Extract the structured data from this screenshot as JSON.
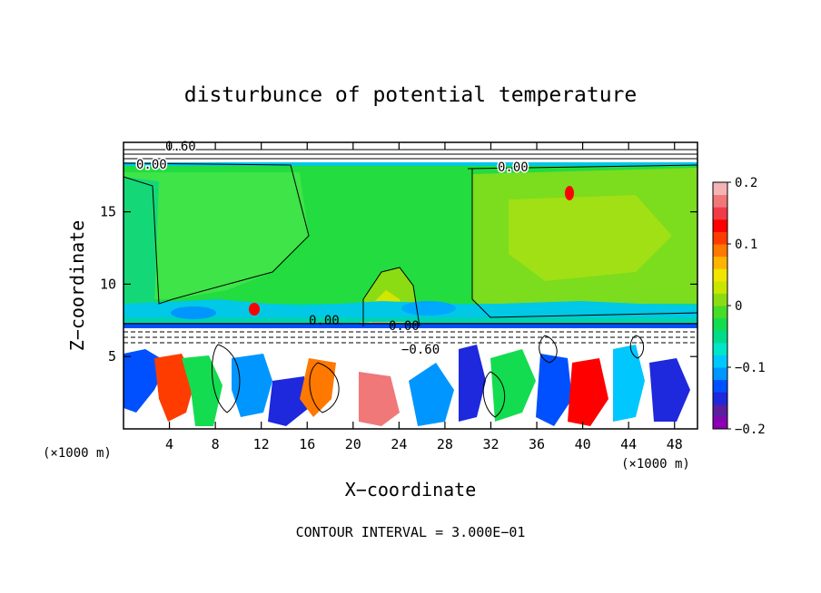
{
  "chart_data": {
    "type": "heatmap",
    "title": "disturbunce of potential temperature",
    "xlabel": "X−coordinate",
    "ylabel": "Z−coordinate",
    "x_unit_left": "(×1000 m)",
    "x_unit_right": "(×1000 m)",
    "xlim": [
      0,
      50
    ],
    "ylim": [
      0,
      19.8
    ],
    "x_ticks": [
      4,
      8,
      12,
      16,
      20,
      24,
      28,
      32,
      36,
      40,
      44,
      48
    ],
    "y_ticks": [
      5,
      10,
      15
    ],
    "colorbar": {
      "range": [
        -0.2,
        0.2
      ],
      "ticks": [
        {
          "value": 0.2,
          "label": "0.2"
        },
        {
          "value": 0.1,
          "label": "0.1"
        },
        {
          "value": 0.0,
          "label": "0"
        },
        {
          "value": -0.1,
          "label": "−0.1"
        },
        {
          "value": -0.2,
          "label": "−0.2"
        }
      ],
      "colors": [
        "#8c00b4",
        "#5a1ea0",
        "#1e28dc",
        "#0050ff",
        "#0096ff",
        "#00c8ff",
        "#00e6c8",
        "#00dc8c",
        "#14dc50",
        "#46dc28",
        "#8cdc14",
        "#c8e600",
        "#f0e600",
        "#ffb400",
        "#ff7800",
        "#ff3c00",
        "#ff0000",
        "#f03c46",
        "#f07878",
        "#f5b4b4"
      ]
    },
    "contour_labels": [
      {
        "text": "0.00",
        "x": 1.0,
        "y": 18.5
      },
      {
        "text": "0.60",
        "x": 3.8,
        "y": 19.4
      },
      {
        "text": "0.00",
        "x": 33.0,
        "y": 18.5
      },
      {
        "text": "0.00",
        "x": 24.3,
        "y": 7.0
      },
      {
        "text": "−0.60",
        "x": 25.5,
        "y": 5.4
      },
      {
        "text": "0.00",
        "x": 17.0,
        "y": 7.4
      }
    ],
    "annotation": "CONTOUR INTERVAL = 3.000E−01"
  }
}
